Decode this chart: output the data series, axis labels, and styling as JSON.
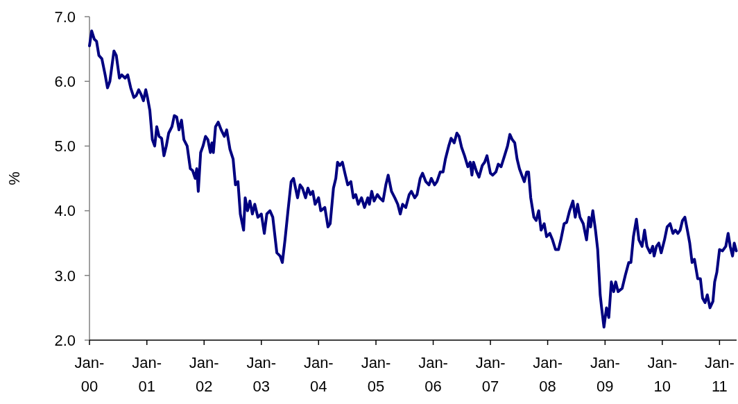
{
  "chart_data": {
    "type": "line",
    "ylabel": "%",
    "grid": false,
    "line_style": "solid",
    "marker": "none",
    "xlim": [
      "2000-01-01",
      "2011-04-20"
    ],
    "xticks": [
      {
        "value": "2000-01-01",
        "label": "Jan-00"
      },
      {
        "value": "2001-01-01",
        "label": "Jan-01"
      },
      {
        "value": "2002-01-01",
        "label": "Jan-02"
      },
      {
        "value": "2003-01-01",
        "label": "Jan-03"
      },
      {
        "value": "2004-01-01",
        "label": "Jan-04"
      },
      {
        "value": "2005-01-01",
        "label": "Jan-05"
      },
      {
        "value": "2006-01-01",
        "label": "Jan-06"
      },
      {
        "value": "2007-01-01",
        "label": "Jan-07"
      },
      {
        "value": "2008-01-01",
        "label": "Jan-08"
      },
      {
        "value": "2009-01-01",
        "label": "Jan-09"
      },
      {
        "value": "2010-01-01",
        "label": "Jan-10"
      },
      {
        "value": "2011-01-01",
        "label": "Jan-11"
      }
    ],
    "ylim": [
      2,
      7
    ],
    "yticks": [
      {
        "value": 2,
        "label": "2.0"
      },
      {
        "value": 3,
        "label": "3.0"
      },
      {
        "value": 4,
        "label": "4.0"
      },
      {
        "value": 5,
        "label": "5.0"
      },
      {
        "value": 6,
        "label": "6.0"
      },
      {
        "value": 7,
        "label": "7.0"
      }
    ],
    "x": [
      "2000-01-01",
      "2000-01-15",
      "2000-02-01",
      "2000-02-15",
      "2000-03-01",
      "2000-03-20",
      "2000-04-10",
      "2000-04-25",
      "2000-05-10",
      "2000-06-05",
      "2000-06-20",
      "2000-07-10",
      "2000-07-25",
      "2000-08-15",
      "2000-09-01",
      "2000-09-20",
      "2000-10-10",
      "2000-10-25",
      "2000-11-10",
      "2000-11-25",
      "2000-12-10",
      "2000-12-25",
      "2001-01-05",
      "2001-01-20",
      "2001-02-05",
      "2001-02-20",
      "2001-03-05",
      "2001-03-20",
      "2001-04-05",
      "2001-04-20",
      "2001-05-05",
      "2001-05-20",
      "2001-06-10",
      "2001-06-25",
      "2001-07-10",
      "2001-07-25",
      "2001-08-10",
      "2001-08-25",
      "2001-09-15",
      "2001-10-05",
      "2001-10-20",
      "2001-11-05",
      "2001-11-15",
      "2001-11-25",
      "2001-12-10",
      "2001-12-25",
      "2002-01-10",
      "2002-01-25",
      "2002-02-10",
      "2002-02-20",
      "2002-03-01",
      "2002-03-15",
      "2002-04-01",
      "2002-04-20",
      "2002-05-10",
      "2002-05-25",
      "2002-06-15",
      "2002-07-05",
      "2002-07-20",
      "2002-08-05",
      "2002-08-20",
      "2002-09-10",
      "2002-09-20",
      "2002-10-05",
      "2002-10-20",
      "2002-11-05",
      "2002-11-20",
      "2002-12-10",
      "2003-01-01",
      "2003-01-20",
      "2003-02-05",
      "2003-02-25",
      "2003-03-15",
      "2003-04-10",
      "2003-05-01",
      "2003-05-15",
      "2003-06-01",
      "2003-06-20",
      "2003-07-10",
      "2003-07-25",
      "2003-08-20",
      "2003-09-05",
      "2003-09-20",
      "2003-10-10",
      "2003-10-25",
      "2003-11-10",
      "2003-11-25",
      "2003-12-10",
      "2004-01-01",
      "2004-01-15",
      "2004-02-10",
      "2004-03-01",
      "2004-03-15",
      "2004-04-05",
      "2004-04-20",
      "2004-05-01",
      "2004-05-15",
      "2004-06-01",
      "2004-06-20",
      "2004-07-05",
      "2004-07-25",
      "2004-08-10",
      "2004-08-25",
      "2004-09-10",
      "2004-10-01",
      "2004-10-20",
      "2004-11-10",
      "2004-11-20",
      "2004-12-05",
      "2004-12-20",
      "2005-01-10",
      "2005-01-25",
      "2005-02-15",
      "2005-03-05",
      "2005-03-20",
      "2005-04-10",
      "2005-05-01",
      "2005-05-20",
      "2005-06-05",
      "2005-06-20",
      "2005-07-10",
      "2005-08-01",
      "2005-08-15",
      "2005-09-05",
      "2005-09-20",
      "2005-10-10",
      "2005-10-25",
      "2005-11-15",
      "2005-12-05",
      "2005-12-20",
      "2006-01-10",
      "2006-01-25",
      "2006-02-15",
      "2006-03-05",
      "2006-03-20",
      "2006-04-10",
      "2006-04-25",
      "2006-05-15",
      "2006-06-01",
      "2006-06-15",
      "2006-07-01",
      "2006-07-20",
      "2006-08-10",
      "2006-08-25",
      "2006-09-05",
      "2006-09-15",
      "2006-10-05",
      "2006-10-20",
      "2006-11-10",
      "2006-11-25",
      "2006-12-10",
      "2007-01-01",
      "2007-01-15",
      "2007-02-05",
      "2007-02-20",
      "2007-03-10",
      "2007-04-01",
      "2007-04-20",
      "2007-05-05",
      "2007-05-20",
      "2007-06-05",
      "2007-06-20",
      "2007-07-05",
      "2007-07-20",
      "2007-08-05",
      "2007-08-20",
      "2007-09-01",
      "2007-09-15",
      "2007-10-05",
      "2007-10-20",
      "2007-11-05",
      "2007-11-20",
      "2007-12-10",
      "2007-12-25",
      "2008-01-15",
      "2008-02-01",
      "2008-02-20",
      "2008-03-10",
      "2008-03-25",
      "2008-04-15",
      "2008-05-01",
      "2008-05-20",
      "2008-06-10",
      "2008-06-25",
      "2008-07-10",
      "2008-07-25",
      "2008-08-15",
      "2008-09-05",
      "2008-09-20",
      "2008-10-01",
      "2008-10-15",
      "2008-11-01",
      "2008-11-15",
      "2008-12-01",
      "2008-12-10",
      "2008-12-25",
      "2009-01-10",
      "2009-01-25",
      "2009-02-10",
      "2009-02-25",
      "2009-03-10",
      "2009-03-25",
      "2009-04-20",
      "2009-05-10",
      "2009-06-01",
      "2009-06-15",
      "2009-07-01",
      "2009-07-20",
      "2009-08-05",
      "2009-08-25",
      "2009-09-10",
      "2009-09-25",
      "2009-10-15",
      "2009-11-01",
      "2009-11-10",
      "2009-11-25",
      "2009-12-10",
      "2009-12-25",
      "2010-01-15",
      "2010-02-01",
      "2010-02-20",
      "2010-03-10",
      "2010-03-25",
      "2010-04-10",
      "2010-04-25",
      "2010-05-10",
      "2010-05-25",
      "2010-06-10",
      "2010-06-25",
      "2010-07-10",
      "2010-07-25",
      "2010-08-15",
      "2010-09-01",
      "2010-09-15",
      "2010-10-01",
      "2010-10-15",
      "2010-11-01",
      "2010-11-20",
      "2010-12-01",
      "2010-12-15",
      "2011-01-01",
      "2011-01-20",
      "2011-02-10",
      "2011-02-25",
      "2011-03-10",
      "2011-03-25",
      "2011-04-05",
      "2011-04-18"
    ],
    "series": [
      {
        "color": "#000080",
        "values": [
          6.55,
          6.78,
          6.65,
          6.62,
          6.4,
          6.35,
          6.1,
          5.9,
          6.0,
          6.47,
          6.4,
          6.05,
          6.1,
          6.05,
          6.1,
          5.9,
          5.75,
          5.78,
          5.87,
          5.8,
          5.7,
          5.87,
          5.75,
          5.55,
          5.1,
          5.0,
          5.3,
          5.15,
          5.12,
          4.85,
          5.0,
          5.2,
          5.3,
          5.47,
          5.45,
          5.25,
          5.4,
          5.1,
          5.0,
          4.65,
          4.62,
          4.5,
          4.65,
          4.3,
          4.9,
          5.0,
          5.15,
          5.1,
          4.9,
          5.05,
          4.9,
          5.3,
          5.37,
          5.25,
          5.15,
          5.25,
          4.95,
          4.8,
          4.4,
          4.45,
          3.95,
          3.7,
          4.2,
          4.0,
          4.15,
          3.95,
          4.1,
          3.9,
          3.95,
          3.65,
          3.95,
          4.0,
          3.9,
          3.35,
          3.3,
          3.2,
          3.55,
          4.0,
          4.45,
          4.5,
          4.2,
          4.4,
          4.35,
          4.2,
          4.35,
          4.25,
          4.3,
          4.1,
          4.2,
          4.0,
          4.05,
          3.75,
          3.8,
          4.35,
          4.5,
          4.75,
          4.7,
          4.75,
          4.55,
          4.4,
          4.45,
          4.2,
          4.25,
          4.1,
          4.2,
          4.05,
          4.2,
          4.1,
          4.3,
          4.15,
          4.25,
          4.2,
          4.15,
          4.4,
          4.55,
          4.3,
          4.2,
          4.1,
          3.95,
          4.1,
          4.05,
          4.25,
          4.3,
          4.2,
          4.25,
          4.5,
          4.58,
          4.45,
          4.4,
          4.5,
          4.4,
          4.45,
          4.6,
          4.6,
          4.8,
          5.0,
          5.12,
          5.05,
          5.2,
          5.15,
          4.98,
          4.85,
          4.68,
          4.75,
          4.55,
          4.75,
          4.6,
          4.52,
          4.7,
          4.75,
          4.85,
          4.58,
          4.55,
          4.6,
          4.72,
          4.68,
          4.85,
          5.0,
          5.18,
          5.1,
          5.05,
          4.8,
          4.65,
          4.55,
          4.45,
          4.6,
          4.6,
          4.2,
          3.9,
          3.85,
          4.0,
          3.7,
          3.8,
          3.6,
          3.65,
          3.55,
          3.4,
          3.4,
          3.55,
          3.8,
          3.82,
          4.0,
          4.15,
          3.9,
          4.1,
          3.9,
          3.8,
          3.55,
          3.9,
          3.75,
          4.0,
          3.7,
          3.4,
          2.7,
          2.5,
          2.2,
          2.5,
          2.35,
          2.9,
          2.75,
          2.9,
          2.75,
          2.8,
          3.0,
          3.2,
          3.2,
          3.6,
          3.87,
          3.55,
          3.45,
          3.7,
          3.45,
          3.35,
          3.45,
          3.3,
          3.45,
          3.5,
          3.35,
          3.55,
          3.75,
          3.8,
          3.65,
          3.7,
          3.65,
          3.7,
          3.85,
          3.9,
          3.7,
          3.5,
          3.2,
          3.25,
          2.95,
          2.95,
          2.65,
          2.58,
          2.7,
          2.5,
          2.6,
          2.9,
          3.05,
          3.4,
          3.38,
          3.45,
          3.65,
          3.45,
          3.3,
          3.5,
          3.38
        ]
      }
    ]
  }
}
